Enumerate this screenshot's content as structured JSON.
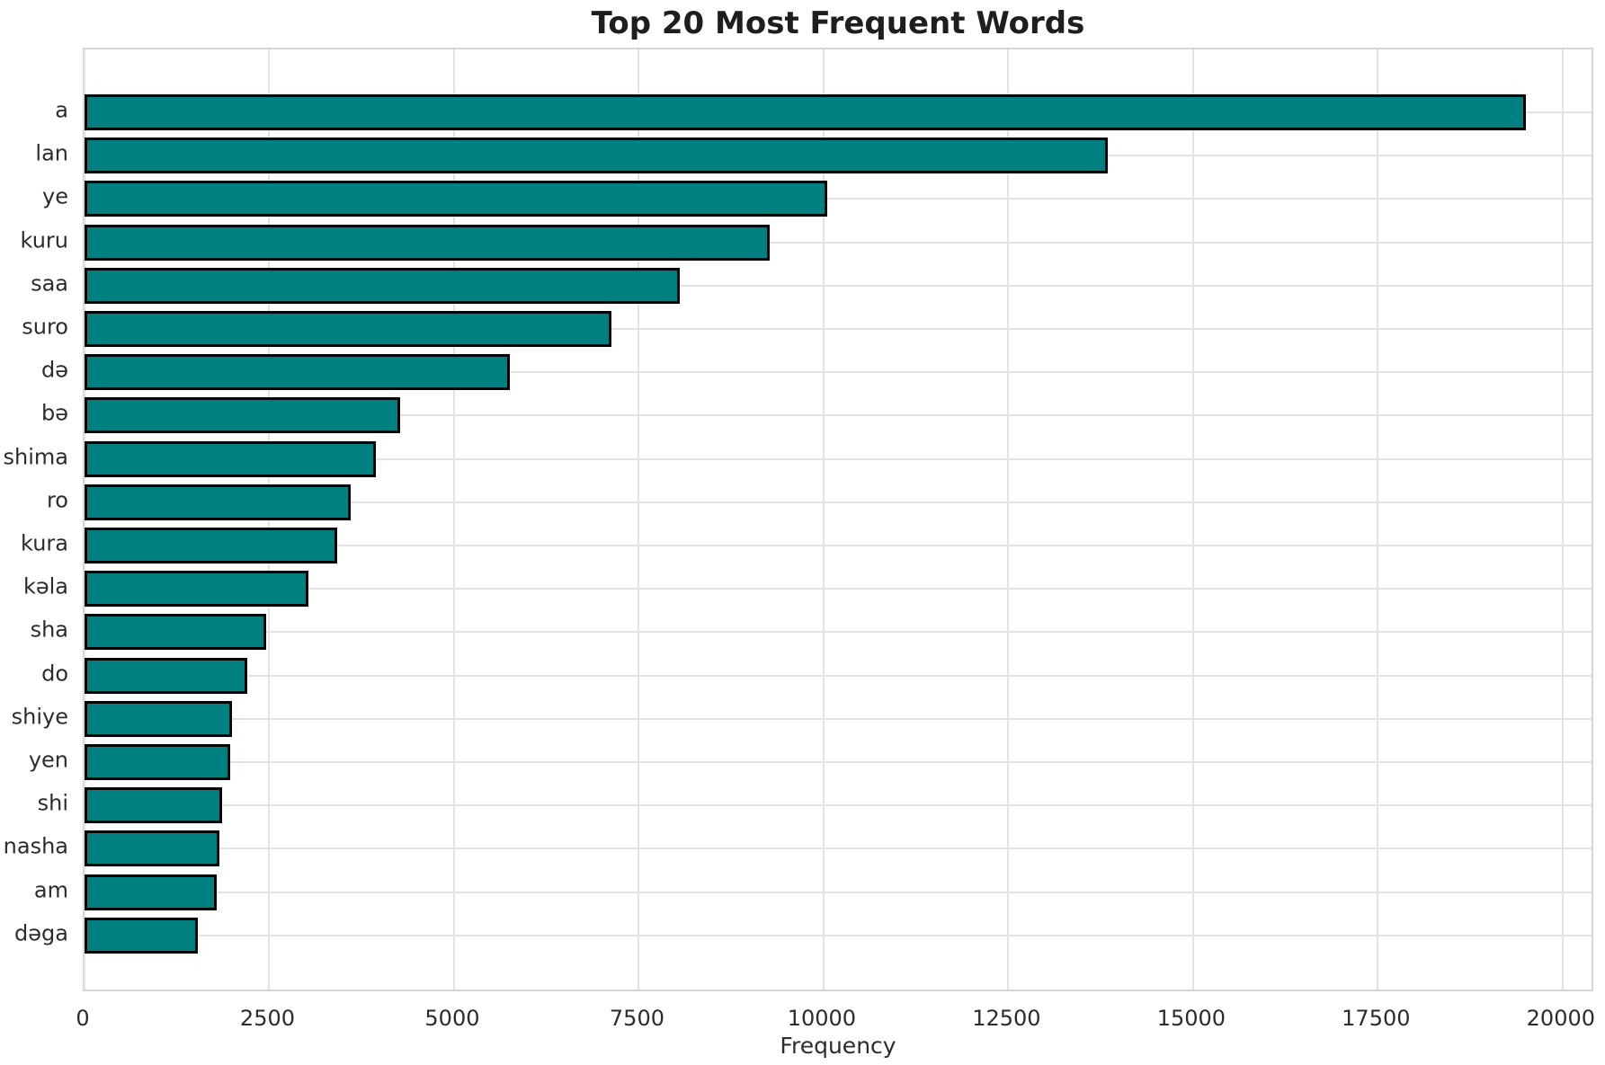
{
  "chart_data": {
    "type": "bar",
    "orientation": "horizontal",
    "title": "Top 20 Most Frequent Words",
    "xlabel": "Frequency",
    "ylabel": "",
    "categories": [
      "a",
      "lan",
      "ye",
      "kuru",
      "saa",
      "suro",
      "də",
      "bə",
      "shima",
      "ro",
      "kura",
      "kəla",
      "sha",
      "do",
      "shiye",
      "yen",
      "shi",
      "nasha",
      "am",
      "dəga"
    ],
    "values": [
      19500,
      13850,
      10050,
      9270,
      8060,
      7130,
      5750,
      4270,
      3940,
      3600,
      3420,
      3030,
      2460,
      2200,
      2000,
      1970,
      1860,
      1820,
      1790,
      1530
    ],
    "xticks": [
      0,
      2500,
      5000,
      7500,
      10000,
      12500,
      15000,
      17500,
      20000
    ],
    "xlim": [
      0,
      20440
    ],
    "grid": true,
    "legend": false,
    "bar_color": "#008080",
    "bar_edge_color": "#000000",
    "grid_color": "#e3e3e3",
    "background_color": "#ffffff"
  }
}
